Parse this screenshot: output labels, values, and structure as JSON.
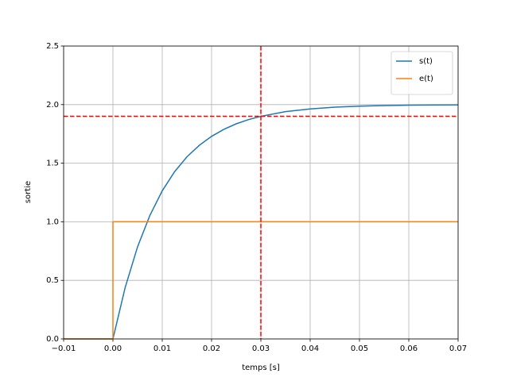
{
  "chart_data": {
    "type": "line",
    "xlabel": "temps [s]",
    "ylabel": "sortie",
    "xlim": [
      -0.01,
      0.07
    ],
    "ylim": [
      0,
      2.5
    ],
    "xticks": [
      {
        "value": -0.01,
        "label": "−0.01"
      },
      {
        "value": 0,
        "label": "0.00"
      },
      0.01,
      0.02,
      0.03,
      0.04,
      0.05,
      0.06,
      0.07
    ],
    "yticks": [
      {
        "value": 0,
        "label": "0.0"
      },
      0.5,
      {
        "value": 1,
        "label": "1.0"
      },
      1.5,
      {
        "value": 2,
        "label": "2.0"
      },
      2.5
    ],
    "grid": true,
    "legend": "upper right",
    "series": [
      {
        "name": "s(t)",
        "color": "#1f77b4",
        "x": [
          -0.01,
          0,
          0.0025,
          0.005,
          0.0075,
          0.01,
          0.0125,
          0.015,
          0.0175,
          0.02,
          0.0225,
          0.025,
          0.0275,
          0.03,
          0.035,
          0.04,
          0.045,
          0.05,
          0.055,
          0.06,
          0.065,
          0.07
        ],
        "values": [
          0,
          0,
          0.442,
          0.787,
          1.055,
          1.264,
          1.427,
          1.554,
          1.652,
          1.729,
          1.789,
          1.836,
          1.872,
          1.9,
          1.94,
          1.963,
          1.978,
          1.987,
          1.992,
          1.995,
          1.997,
          1.998
        ]
      },
      {
        "name": "e(t)",
        "color": "#ff7f0e",
        "x": [
          -0.01,
          0,
          0,
          0.07
        ],
        "values": [
          0,
          0,
          1,
          1
        ]
      }
    ],
    "hlines": [
      {
        "value": 1.9,
        "color": "red"
      }
    ],
    "vlines": [
      {
        "value": 0.03,
        "color": "red"
      }
    ]
  }
}
